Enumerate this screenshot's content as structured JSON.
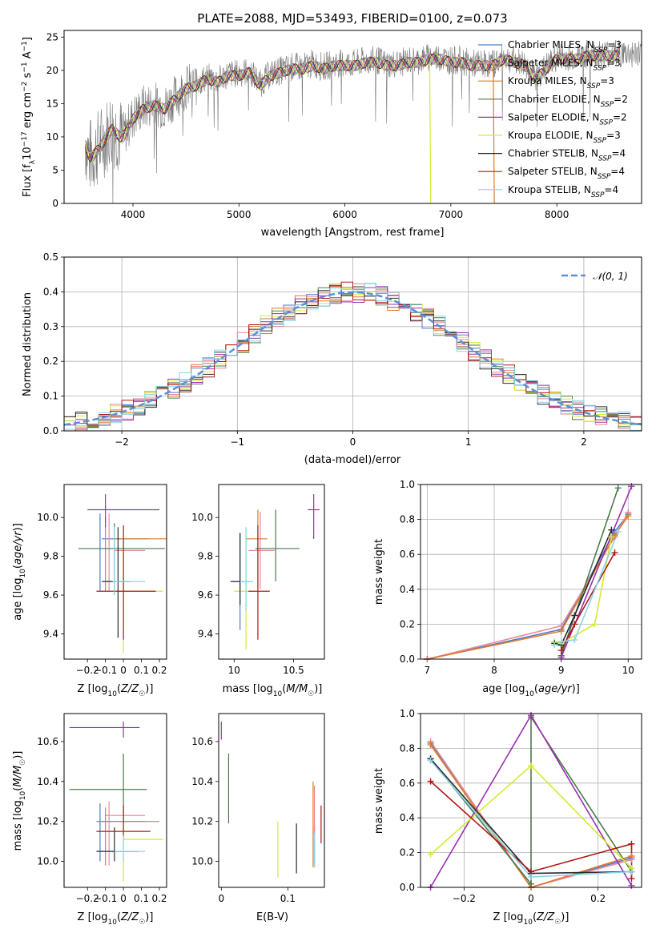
{
  "figure": {
    "title": "PLATE=2088, MJD=53493, FIBERID=0100, z=0.073"
  },
  "series_styles": [
    {
      "label": "Chabrier MILES, N_SSP=3",
      "color": "#4f7bd0"
    },
    {
      "label": "Salpeter MILES, N_SSP=3",
      "color": "#e8879c"
    },
    {
      "label": "Kroupa MILES, N_SSP=3",
      "color": "#e07b28"
    },
    {
      "label": "Chabrier ELODIE, N_SSP=2",
      "color": "#4c7a4c"
    },
    {
      "label": "Salpeter ELODIE, N_SSP=2",
      "color": "#9b30b0"
    },
    {
      "label": "Kroupa ELODIE, N_SSP=3",
      "color": "#d6ea2e"
    },
    {
      "label": "Chabrier STELIB, N_SSP=4",
      "color": "#2a2a2a"
    },
    {
      "label": "Salpeter STELIB, N_SSP=4",
      "color": "#b01818"
    },
    {
      "label": "Kroupa STELIB, N_SSP=4",
      "color": "#86d6e8"
    }
  ],
  "chart_data": [
    {
      "id": "spectrum",
      "type": "line",
      "xlabel": "wavelength [Angstrom, rest frame]",
      "ylabel": "Flux [f_λ10^-17 erg cm^-2 s^-1 A^-1]",
      "xlim": [
        3350,
        8800
      ],
      "ylim": [
        0,
        26
      ],
      "xticks": [
        4000,
        5000,
        6000,
        7000,
        8000
      ],
      "yticks": [
        0,
        5,
        10,
        15,
        20,
        25
      ],
      "continuum": [
        [
          3550,
          9
        ],
        [
          3600,
          7
        ],
        [
          3700,
          9
        ],
        [
          3800,
          11.5
        ],
        [
          3900,
          10
        ],
        [
          4000,
          13
        ],
        [
          4100,
          14.5
        ],
        [
          4200,
          15
        ],
        [
          4300,
          14.5
        ],
        [
          4400,
          16
        ],
        [
          4500,
          17.5
        ],
        [
          4600,
          18
        ],
        [
          4700,
          19
        ],
        [
          4800,
          18.5
        ],
        [
          4900,
          19.5
        ],
        [
          5000,
          19.5
        ],
        [
          5100,
          20
        ],
        [
          5200,
          18
        ],
        [
          5300,
          19.5
        ],
        [
          5400,
          20
        ],
        [
          5500,
          20.5
        ],
        [
          5600,
          20.5
        ],
        [
          5700,
          21
        ],
        [
          5800,
          20.5
        ],
        [
          5900,
          21
        ],
        [
          6000,
          21
        ],
        [
          6100,
          21
        ],
        [
          6200,
          21.5
        ],
        [
          6300,
          21.5
        ],
        [
          6400,
          21
        ],
        [
          6500,
          21
        ],
        [
          6600,
          21.5
        ],
        [
          6700,
          21.5
        ],
        [
          6800,
          22
        ],
        [
          6900,
          22
        ],
        [
          7000,
          21.5
        ],
        [
          7100,
          21.5
        ],
        [
          7200,
          21
        ],
        [
          7300,
          21
        ],
        [
          7400,
          21
        ],
        [
          7500,
          22
        ],
        [
          7600,
          21.5
        ],
        [
          7700,
          21
        ],
        [
          7800,
          19
        ],
        [
          7900,
          20.5
        ],
        [
          8000,
          22
        ],
        [
          8100,
          22
        ],
        [
          8200,
          22
        ],
        [
          8300,
          22.5
        ],
        [
          8400,
          22.5
        ],
        [
          8500,
          22.5
        ],
        [
          8600,
          22.5
        ],
        [
          8700,
          22.5
        ],
        [
          8800,
          22.5
        ]
      ],
      "legend_location": "upper right",
      "data_series": "gray"
    },
    {
      "id": "residual-histogram",
      "type": "line",
      "xlabel": "(data-model)/error",
      "ylabel": "Normed distribution",
      "xlim": [
        -2.5,
        2.5
      ],
      "ylim": [
        0,
        0.5
      ],
      "xticks": [
        -2,
        -1,
        0,
        1,
        2
      ],
      "yticks": [
        0.0,
        0.1,
        0.2,
        0.3,
        0.4,
        0.5
      ],
      "grid": true,
      "reference_label": "𝒩(0, 1)",
      "reference_color": "#5a8fd8",
      "legend_location": "upper right"
    },
    {
      "id": "age-vs-z",
      "type": "scatter",
      "xlabel": "Z [log10(Z/Z☉)]",
      "ylabel": "age [log10(age/yr)]",
      "xlim": [
        -0.33,
        0.24
      ],
      "ylim": [
        9.27,
        10.17
      ],
      "xticks": [
        -0.2,
        -0.1,
        0.0,
        0.1,
        0.2
      ],
      "yticks": [
        9.4,
        9.6,
        9.8,
        10.0
      ],
      "points": [
        {
          "s": 0,
          "x": -0.13,
          "y": 9.89,
          "ex": [
            -0.12,
            0.14
          ],
          "ey": [
            9.62,
            10.02
          ]
        },
        {
          "s": 1,
          "x": -0.08,
          "y": 9.83,
          "ex": [
            -0.05,
            0.12
          ],
          "ey": [
            9.62,
            10.02
          ]
        },
        {
          "s": 2,
          "x": -0.1,
          "y": 9.89,
          "ex": [
            -0.05,
            0.25
          ],
          "ey": [
            9.62,
            10.0
          ]
        },
        {
          "s": 3,
          "x": -0.05,
          "y": 9.84,
          "ex": [
            -0.25,
            0.23
          ],
          "ey": [
            9.6,
            9.97
          ]
        },
        {
          "s": 4,
          "x": -0.1,
          "y": 10.04,
          "ex": [
            -0.2,
            0.2
          ],
          "ey": [
            9.95,
            10.12
          ]
        },
        {
          "s": 5,
          "x": 0.0,
          "y": 9.62,
          "ex": [
            -0.05,
            0.22
          ],
          "ey": [
            9.3,
            9.95
          ]
        },
        {
          "s": 6,
          "x": -0.03,
          "y": 9.67,
          "ex": [
            -0.12,
            0.04
          ],
          "ey": [
            9.38,
            9.95
          ]
        },
        {
          "s": 7,
          "x": 0.0,
          "y": 9.62,
          "ex": [
            -0.15,
            0.18
          ],
          "ey": [
            9.37,
            9.96
          ]
        },
        {
          "s": 8,
          "x": -0.05,
          "y": 9.67,
          "ex": [
            -0.06,
            0.12
          ],
          "ey": [
            9.6,
            9.95
          ]
        }
      ]
    },
    {
      "id": "age-vs-mass",
      "type": "scatter",
      "xlabel": "mass [log10(M/M☉)]",
      "ylabel": "",
      "xlim": [
        9.87,
        10.76
      ],
      "ylim": [
        9.27,
        10.17
      ],
      "xticks": [
        10.0,
        10.5
      ],
      "yticks": [
        9.4,
        9.6,
        9.8,
        10.0
      ],
      "points": [
        {
          "s": 0,
          "x": 10.05,
          "y": 9.67,
          "ex": [
            0.08,
            0.08
          ],
          "ey": [
            0.25,
            0.25
          ]
        },
        {
          "s": 1,
          "x": 10.22,
          "y": 9.83,
          "ex": [
            0.1,
            0.12
          ],
          "ey": [
            0.2,
            0.2
          ]
        },
        {
          "s": 2,
          "x": 10.2,
          "y": 9.89,
          "ex": [
            0.1,
            0.08
          ],
          "ey": [
            0.25,
            0.15
          ]
        },
        {
          "s": 3,
          "x": 10.35,
          "y": 9.84,
          "ex": [
            0.17,
            0.2
          ],
          "ey": [
            0.17,
            0.2
          ]
        },
        {
          "s": 4,
          "x": 10.67,
          "y": 10.04,
          "ex": [
            0.05,
            0.05
          ],
          "ey": [
            0.15,
            0.08
          ]
        },
        {
          "s": 5,
          "x": 10.1,
          "y": 9.62,
          "ex": [
            0.1,
            0.05
          ],
          "ey": [
            0.3,
            0.3
          ]
        },
        {
          "s": 6,
          "x": 10.05,
          "y": 9.67,
          "ex": [
            0.08,
            0.0
          ],
          "ey": [
            0.12,
            0.25
          ]
        },
        {
          "s": 7,
          "x": 10.2,
          "y": 9.62,
          "ex": [
            0.08,
            0.1
          ],
          "ey": [
            0.25,
            0.34
          ]
        },
        {
          "s": 8,
          "x": 10.1,
          "y": 9.67,
          "ex": [
            0.05,
            0.06
          ],
          "ey": [
            0.15,
            0.28
          ]
        }
      ]
    },
    {
      "id": "mass-weight-vs-age",
      "type": "line",
      "xlabel": "age [log10(age/yr)]",
      "ylabel": "mass weight",
      "xlim": [
        6.9,
        10.2
      ],
      "ylim": [
        0,
        1
      ],
      "xticks": [
        7,
        8,
        9,
        10
      ],
      "yticks": [
        0.0,
        0.2,
        0.4,
        0.6,
        0.8,
        1.0
      ],
      "grid": true,
      "series": [
        {
          "s": 0,
          "x": [
            7.0,
            9.0,
            9.8,
            10.0
          ],
          "y": [
            0.0,
            0.17,
            0.73,
            0.83
          ]
        },
        {
          "s": 1,
          "x": [
            7.0,
            9.0,
            9.8,
            10.0
          ],
          "y": [
            0.0,
            0.19,
            0.7,
            0.84
          ]
        },
        {
          "s": 2,
          "x": [
            7.0,
            9.0,
            9.8,
            10.0
          ],
          "y": [
            0.0,
            0.16,
            0.71,
            0.82
          ]
        },
        {
          "s": 3,
          "x": [
            9.0,
            9.85
          ],
          "y": [
            0.02,
            0.98
          ]
        },
        {
          "s": 4,
          "x": [
            9.0,
            10.05
          ],
          "y": [
            0.01,
            0.99
          ]
        },
        {
          "s": 5,
          "x": [
            8.9,
            9.0,
            9.5,
            9.75
          ],
          "y": [
            0.1,
            0.09,
            0.2,
            0.7
          ]
        },
        {
          "s": 6,
          "x": [
            8.9,
            9.0,
            9.2,
            9.75
          ],
          "y": [
            0.09,
            0.08,
            0.25,
            0.74
          ]
        },
        {
          "s": 7,
          "x": [
            9.0,
            9.2,
            9.8
          ],
          "y": [
            0.05,
            0.2,
            0.61
          ]
        },
        {
          "s": 8,
          "x": [
            8.9,
            9.0,
            9.2,
            9.85
          ],
          "y": [
            0.08,
            0.1,
            0.11,
            0.73
          ]
        }
      ]
    },
    {
      "id": "mass-vs-z",
      "type": "scatter",
      "xlabel": "Z [log10(Z/Z☉)]",
      "ylabel": "mass [log10(M/M☉)]",
      "xlim": [
        -0.33,
        0.24
      ],
      "ylim": [
        9.87,
        10.74
      ],
      "xticks": [
        -0.2,
        -0.1,
        0.0,
        0.1,
        0.2
      ],
      "yticks": [
        10.0,
        10.2,
        10.4,
        10.6
      ],
      "points": [
        {
          "s": 0,
          "x": -0.13,
          "y": 10.2,
          "ex": [
            -0.15,
            0.12
          ],
          "ey": [
            10.0,
            10.29
          ]
        },
        {
          "s": 1,
          "x": -0.08,
          "y": 10.23,
          "ex": [
            -0.1,
            0.12
          ],
          "ey": [
            9.98,
            10.3
          ]
        },
        {
          "s": 2,
          "x": -0.1,
          "y": 10.2,
          "ex": [
            -0.15,
            0.2
          ],
          "ey": [
            9.98,
            10.27
          ]
        },
        {
          "s": 3,
          "x": 0.0,
          "y": 10.36,
          "ex": [
            -0.3,
            0.13
          ],
          "ey": [
            10.19,
            10.54
          ]
        },
        {
          "s": 4,
          "x": 0.0,
          "y": 10.67,
          "ex": [
            -0.3,
            0.09
          ],
          "ey": [
            10.62,
            10.7
          ]
        },
        {
          "s": 5,
          "x": 0.0,
          "y": 10.11,
          "ex": [
            0.0,
            0.22
          ],
          "ey": [
            9.9,
            10.2
          ]
        },
        {
          "s": 6,
          "x": -0.05,
          "y": 10.05,
          "ex": [
            -0.15,
            0.08
          ],
          "ey": [
            10.0,
            10.17
          ]
        },
        {
          "s": 7,
          "x": 0.0,
          "y": 10.15,
          "ex": [
            -0.15,
            0.15
          ],
          "ey": [
            10.12,
            10.28
          ]
        },
        {
          "s": 8,
          "x": 0.0,
          "y": 10.05,
          "ex": [
            -0.05,
            0.12
          ],
          "ey": [
            10.0,
            10.13
          ]
        }
      ]
    },
    {
      "id": "mass-vs-ebv",
      "type": "scatter",
      "xlabel": "E(B-V)",
      "ylabel": "",
      "xlim": [
        -0.004,
        0.155
      ],
      "ylim": [
        9.87,
        10.74
      ],
      "xticks": [
        0.0,
        0.1
      ],
      "yticks": [
        10.0,
        10.2,
        10.4,
        10.6
      ],
      "points": [
        {
          "s": 0,
          "x": 0.14,
          "y": 10.05,
          "ey": [
            0.08,
            0.13
          ]
        },
        {
          "s": 1,
          "x": 0.14,
          "y": 10.18,
          "ey": [
            0.2,
            0.2
          ]
        },
        {
          "s": 2,
          "x": 0.138,
          "y": 10.2,
          "ey": [
            0.23,
            0.2
          ]
        },
        {
          "s": 3,
          "x": 0.011,
          "y": 10.37,
          "ey": [
            0.18,
            0.17
          ]
        },
        {
          "s": 4,
          "x": 0.0,
          "y": 10.66,
          "ey": [
            0.05,
            0.04
          ]
        },
        {
          "s": 5,
          "x": 0.085,
          "y": 10.06,
          "ey": [
            0.14,
            0.14
          ]
        },
        {
          "s": 6,
          "x": 0.113,
          "y": 10.06,
          "ey": [
            0.12,
            0.13
          ]
        },
        {
          "s": 7,
          "x": 0.15,
          "y": 10.18,
          "ey": [
            0.09,
            0.1
          ]
        },
        {
          "s": 8,
          "x": 0.14,
          "y": 10.05,
          "ey": [
            0.08,
            0.09
          ]
        }
      ]
    },
    {
      "id": "mass-weight-vs-z",
      "type": "line",
      "xlabel": "Z [log10(Z/Z☉)]",
      "ylabel": "mass weight",
      "xlim": [
        -0.33,
        0.33
      ],
      "ylim": [
        0,
        1
      ],
      "xticks": [
        -0.2,
        0.0,
        0.2
      ],
      "yticks": [
        0.0,
        0.2,
        0.4,
        0.6,
        0.8,
        1.0
      ],
      "grid": true,
      "series": [
        {
          "s": 0,
          "x": [
            -0.3,
            0.0,
            0.3
          ],
          "y": [
            0.83,
            0.0,
            0.17
          ]
        },
        {
          "s": 1,
          "x": [
            -0.3,
            0.0,
            0.3
          ],
          "y": [
            0.84,
            0.0,
            0.16
          ]
        },
        {
          "s": 2,
          "x": [
            -0.3,
            0.0,
            0.3
          ],
          "y": [
            0.82,
            0.0,
            0.18
          ]
        },
        {
          "s": 3,
          "x": [
            -0.3,
            0.0,
            0.0,
            0.3
          ],
          "y": [
            0.74,
            0.02,
            0.98,
            0.09
          ]
        },
        {
          "s": 4,
          "x": [
            -0.3,
            0.0,
            0.3
          ],
          "y": [
            0.0,
            0.99,
            0.01
          ]
        },
        {
          "s": 5,
          "x": [
            -0.3,
            0.0,
            0.3
          ],
          "y": [
            0.19,
            0.7,
            0.11
          ]
        },
        {
          "s": 6,
          "x": [
            -0.3,
            0.0,
            0.3
          ],
          "y": [
            0.74,
            0.08,
            0.09
          ]
        },
        {
          "s": 7,
          "x": [
            -0.3,
            0.0,
            0.3,
            0.3
          ],
          "y": [
            0.61,
            0.09,
            0.25,
            0.05
          ]
        },
        {
          "s": 8,
          "x": [
            -0.3,
            0.0,
            0.3
          ],
          "y": [
            0.73,
            0.06,
            0.09
          ]
        }
      ]
    }
  ]
}
